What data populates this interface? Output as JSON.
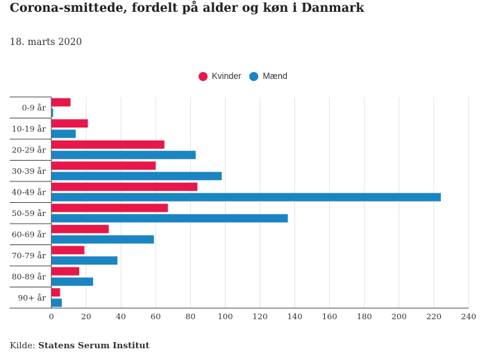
{
  "header": {
    "title": "Corona-smittede, fordelt på alder og køn i Danmark",
    "subtitle": "18. marts 2020"
  },
  "source": {
    "label": "Kilde:",
    "name": "Statens Serum Institut"
  },
  "colors": {
    "kvinder": "#e8174a",
    "maend": "#1a85c2",
    "grid": "#e3e3e3",
    "axis": "#444444"
  },
  "chart_data": {
    "type": "bar",
    "orientation": "horizontal",
    "categories": [
      "0-9 år",
      "10-19 år",
      "20-29 år",
      "30-39 år",
      "40-49 år",
      "50-59 år",
      "60-69 år",
      "70-79 år",
      "80-89 år",
      "90+ år"
    ],
    "series": [
      {
        "name": "Kvinder",
        "values": [
          11,
          21,
          65,
          60,
          84,
          67,
          33,
          19,
          16,
          5
        ]
      },
      {
        "name": "Mænd",
        "values": [
          1,
          14,
          83,
          98,
          224,
          136,
          59,
          38,
          24,
          6
        ]
      }
    ],
    "xlim": [
      0,
      240
    ],
    "xticks": [
      0,
      20,
      40,
      60,
      80,
      100,
      120,
      140,
      160,
      180,
      200,
      220,
      240
    ],
    "grid": true,
    "legend_position": "top-center"
  }
}
